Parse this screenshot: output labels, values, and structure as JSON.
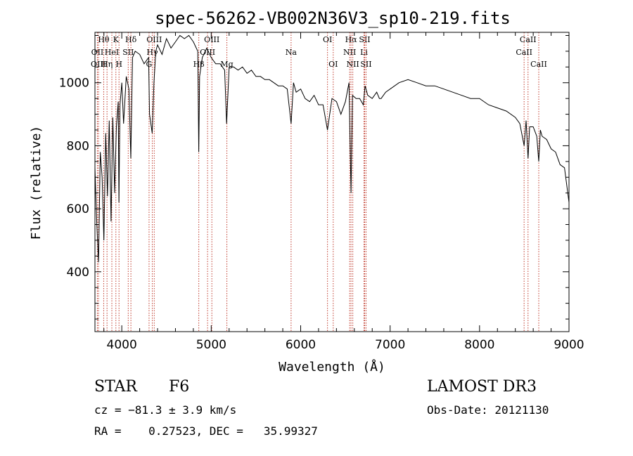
{
  "chart_data": {
    "type": "line",
    "title": "spec-56262-VB002N36V3_sp10-219.fits",
    "xlabel": "Wavelength (Å)",
    "ylabel": "Flux (relative)",
    "xlim": [
      3700,
      9000
    ],
    "ylim": [
      210,
      1160
    ],
    "xticks": [
      4000,
      5000,
      6000,
      7000,
      8000,
      9000
    ],
    "yticks": [
      400,
      600,
      800,
      1000
    ],
    "series": [
      {
        "name": "spectrum",
        "x": [
          3700,
          3720,
          3740,
          3760,
          3780,
          3800,
          3820,
          3840,
          3860,
          3880,
          3900,
          3920,
          3940,
          3960,
          3968,
          3980,
          4000,
          4020,
          4050,
          4080,
          4101,
          4120,
          4150,
          4200,
          4250,
          4300,
          4310,
          4340,
          4360,
          4380,
          4400,
          4450,
          4500,
          4550,
          4600,
          4650,
          4700,
          4750,
          4800,
          4850,
          4861,
          4870,
          4900,
          4950,
          5000,
          5050,
          5100,
          5150,
          5172,
          5200,
          5250,
          5300,
          5350,
          5400,
          5450,
          5500,
          5550,
          5600,
          5650,
          5700,
          5750,
          5800,
          5850,
          5893,
          5920,
          5950,
          6000,
          6050,
          6100,
          6150,
          6200,
          6250,
          6300,
          6350,
          6400,
          6450,
          6500,
          6540,
          6563,
          6580,
          6620,
          6660,
          6700,
          6720,
          6750,
          6800,
          6850,
          6880,
          6900,
          6950,
          7000,
          7100,
          7200,
          7300,
          7400,
          7500,
          7600,
          7700,
          7800,
          7900,
          8000,
          8100,
          8200,
          8300,
          8400,
          8450,
          8498,
          8520,
          8542,
          8560,
          8600,
          8640,
          8662,
          8680,
          8700,
          8750,
          8800,
          8850,
          8900,
          8950,
          9000
        ],
        "values": [
          730,
          560,
          430,
          780,
          700,
          500,
          840,
          640,
          880,
          560,
          890,
          650,
          860,
          940,
          620,
          930,
          1000,
          870,
          1020,
          980,
          760,
          1080,
          1100,
          1090,
          1060,
          1080,
          900,
          840,
          1000,
          1100,
          1120,
          1090,
          1140,
          1110,
          1130,
          1150,
          1140,
          1150,
          1130,
          1100,
          780,
          1020,
          1080,
          1110,
          1080,
          1060,
          1060,
          1040,
          870,
          1050,
          1050,
          1040,
          1050,
          1030,
          1040,
          1020,
          1020,
          1010,
          1010,
          1000,
          990,
          990,
          980,
          870,
          1000,
          970,
          980,
          950,
          940,
          960,
          930,
          930,
          850,
          950,
          940,
          900,
          940,
          1000,
          650,
          960,
          950,
          950,
          930,
          990,
          960,
          950,
          970,
          950,
          950,
          970,
          980,
          1000,
          1010,
          1000,
          990,
          990,
          980,
          970,
          960,
          950,
          950,
          930,
          920,
          910,
          890,
          870,
          800,
          880,
          760,
          860,
          860,
          830,
          750,
          850,
          830,
          820,
          790,
          780,
          740,
          730,
          620
        ]
      }
    ],
    "lines": [
      {
        "label": "Hθ",
        "wl": 3798,
        "row": 1
      },
      {
        "label": "OII",
        "wl": 3727,
        "row": 2
      },
      {
        "label": "OIII",
        "wl": 3740,
        "row": 3
      },
      {
        "label": "K",
        "wl": 3934,
        "row": 1
      },
      {
        "label": "HeI",
        "wl": 3889,
        "row": 2
      },
      {
        "label": "Hη",
        "wl": 3835,
        "row": 3
      },
      {
        "label": "SII",
        "wl": 4072,
        "row": 2
      },
      {
        "label": "H",
        "wl": 3969,
        "row": 3
      },
      {
        "label": "Hδ",
        "wl": 4102,
        "row": 1
      },
      {
        "label": "OIII",
        "wl": 4363,
        "row": 1
      },
      {
        "label": "Hγ",
        "wl": 4341,
        "row": 2
      },
      {
        "label": "G",
        "wl": 4305,
        "row": 3
      },
      {
        "label": "Hβ",
        "wl": 4861,
        "row": 3
      },
      {
        "label": "OIII",
        "wl": 5007,
        "row": 1
      },
      {
        "label": "OIII",
        "wl": 4959,
        "row": 2
      },
      {
        "label": "Mg",
        "wl": 5175,
        "row": 3
      },
      {
        "label": "Na",
        "wl": 5893,
        "row": 2
      },
      {
        "label": "OI",
        "wl": 6300,
        "row": 1
      },
      {
        "label": "OI",
        "wl": 6364,
        "row": 3
      },
      {
        "label": "Hα",
        "wl": 6563,
        "row": 1
      },
      {
        "label": "NII",
        "wl": 6548,
        "row": 2
      },
      {
        "label": "NII",
        "wl": 6583,
        "row": 3
      },
      {
        "label": "SII",
        "wl": 6716,
        "row": 1
      },
      {
        "label": "Li",
        "wl": 6708,
        "row": 2
      },
      {
        "label": "SII",
        "wl": 6731,
        "row": 3
      },
      {
        "label": "CaII",
        "wl": 8542,
        "row": 1
      },
      {
        "label": "CaII",
        "wl": 8498,
        "row": 2
      },
      {
        "label": "CaII",
        "wl": 8662,
        "row": 3
      }
    ]
  },
  "info": {
    "object_class": "STAR",
    "subclass": "F6",
    "redshift": "cz = −81.3 ± 3.9 km/s",
    "coords": "RA =    0.27523, DEC =   35.99327",
    "survey": "LAMOST DR3",
    "obs_date": "Obs-Date: 20121130"
  }
}
